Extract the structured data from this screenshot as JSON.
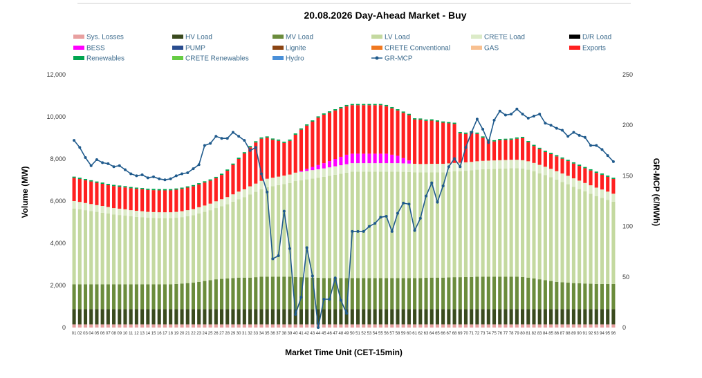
{
  "chart_data": {
    "type": "bar",
    "title": "20.08.2026  Day-Ahead Market - Buy",
    "xlabel": "Market Time Unit (CET-15min)",
    "ylabel": "Volume (MW)",
    "y2label": "GR-MCP (€/MWh)",
    "ylim": [
      0,
      12000
    ],
    "y2lim": [
      0,
      250
    ],
    "yticks": [
      "0",
      "2,000",
      "4,000",
      "6,000",
      "8,000",
      "10,000",
      "12,000"
    ],
    "y2ticks": [
      "0",
      "50",
      "100",
      "150",
      "200",
      "250"
    ],
    "categories": [
      "01",
      "02",
      "03",
      "04",
      "05",
      "06",
      "07",
      "08",
      "09",
      "10",
      "11",
      "12",
      "13",
      "14",
      "15",
      "16",
      "17",
      "18",
      "19",
      "20",
      "21",
      "22",
      "23",
      "24",
      "25",
      "26",
      "27",
      "28",
      "29",
      "30",
      "31",
      "32",
      "33",
      "34",
      "35",
      "36",
      "37",
      "38",
      "39",
      "40",
      "41",
      "42",
      "43",
      "44",
      "45",
      "46",
      "47",
      "48",
      "49",
      "50",
      "51",
      "52",
      "53",
      "54",
      "55",
      "56",
      "57",
      "58",
      "59",
      "60",
      "61",
      "62",
      "63",
      "64",
      "65",
      "66",
      "67",
      "68",
      "69",
      "70",
      "71",
      "72",
      "73",
      "74",
      "75",
      "76",
      "77",
      "78",
      "79",
      "80",
      "81",
      "82",
      "83",
      "84",
      "85",
      "86",
      "87",
      "88",
      "89",
      "90",
      "91",
      "92",
      "93",
      "94",
      "95",
      "96"
    ],
    "legend": [
      {
        "name": "Sys. Losses",
        "color": "#e8a0a0"
      },
      {
        "name": "HV Load",
        "color": "#3a4a1e"
      },
      {
        "name": "MV Load",
        "color": "#6b8c3c"
      },
      {
        "name": "LV Load",
        "color": "#c4d9a0"
      },
      {
        "name": "CRETE Load",
        "color": "#dcebc8"
      },
      {
        "name": "D/R Load",
        "color": "#000000"
      },
      {
        "name": "BESS",
        "color": "#ff00ff"
      },
      {
        "name": "PUMP",
        "color": "#2a4d8f"
      },
      {
        "name": "Lignite",
        "color": "#8b4513"
      },
      {
        "name": "CRETE Conventional",
        "color": "#f07820"
      },
      {
        "name": "GAS",
        "color": "#f8c090"
      },
      {
        "name": "Exports",
        "color": "#ff2020"
      },
      {
        "name": "Renewables",
        "color": "#00a550"
      },
      {
        "name": "CRETE Renewables",
        "color": "#66cc44"
      },
      {
        "name": "Hydro",
        "color": "#4a90d9"
      },
      {
        "name": "GR-MCP",
        "color": "#1f5a8c"
      }
    ],
    "series": [
      {
        "name": "Sys. Losses",
        "values": [
          150,
          150,
          150,
          150,
          150,
          150,
          150,
          150,
          150,
          150,
          150,
          150,
          150,
          150,
          150,
          150,
          150,
          150,
          150,
          150,
          150,
          150,
          150,
          150,
          150,
          150,
          150,
          150,
          150,
          150,
          150,
          150,
          150,
          150,
          150,
          150,
          150,
          150,
          150,
          150,
          150,
          150,
          150,
          150,
          150,
          150,
          150,
          150,
          150,
          150,
          150,
          150,
          150,
          150,
          150,
          150,
          150,
          150,
          150,
          150,
          150,
          150,
          150,
          150,
          150,
          150,
          150,
          150,
          150,
          150,
          150,
          150,
          150,
          150,
          150,
          150,
          150,
          150,
          150,
          150,
          150,
          150,
          150,
          150,
          150,
          150,
          150,
          150,
          150,
          150,
          150,
          150,
          150,
          150,
          150,
          150
        ]
      },
      {
        "name": "HV Load",
        "values": [
          720,
          720,
          720,
          720,
          720,
          720,
          720,
          720,
          720,
          720,
          720,
          720,
          720,
          720,
          720,
          720,
          720,
          720,
          720,
          720,
          720,
          720,
          720,
          720,
          720,
          720,
          720,
          720,
          720,
          720,
          720,
          720,
          720,
          720,
          720,
          720,
          720,
          720,
          720,
          720,
          720,
          720,
          720,
          720,
          720,
          720,
          720,
          720,
          720,
          720,
          720,
          720,
          720,
          720,
          720,
          720,
          720,
          720,
          720,
          720,
          720,
          720,
          720,
          720,
          720,
          720,
          720,
          720,
          720,
          720,
          720,
          720,
          720,
          720,
          720,
          720,
          720,
          720,
          720,
          720,
          720,
          720,
          720,
          720,
          720,
          720,
          720,
          720,
          720,
          720,
          720,
          720,
          720,
          720,
          720,
          720
        ]
      },
      {
        "name": "MV Load",
        "values": [
          1180,
          1180,
          1180,
          1180,
          1180,
          1180,
          1180,
          1180,
          1180,
          1180,
          1180,
          1180,
          1180,
          1180,
          1180,
          1180,
          1180,
          1180,
          1200,
          1220,
          1240,
          1260,
          1300,
          1340,
          1380,
          1420,
          1440,
          1460,
          1480,
          1500,
          1500,
          1500,
          1520,
          1540,
          1540,
          1540,
          1540,
          1540,
          1540,
          1530,
          1520,
          1510,
          1500,
          1490,
          1480,
          1480,
          1480,
          1480,
          1480,
          1480,
          1480,
          1480,
          1480,
          1480,
          1480,
          1480,
          1480,
          1480,
          1480,
          1480,
          1480,
          1480,
          1490,
          1500,
          1500,
          1500,
          1510,
          1520,
          1520,
          1530,
          1530,
          1540,
          1540,
          1540,
          1540,
          1540,
          1540,
          1540,
          1540,
          1530,
          1500,
          1460,
          1420,
          1380,
          1340,
          1300,
          1280,
          1260,
          1240,
          1230,
          1220,
          1210,
          1200,
          1200,
          1200,
          1200
        ]
      },
      {
        "name": "LV Load",
        "values": [
          3600,
          3560,
          3520,
          3480,
          3440,
          3400,
          3360,
          3320,
          3290,
          3260,
          3230,
          3200,
          3180,
          3160,
          3150,
          3140,
          3140,
          3140,
          3140,
          3150,
          3170,
          3200,
          3240,
          3280,
          3320,
          3380,
          3450,
          3520,
          3620,
          3720,
          3820,
          3950,
          4050,
          4150,
          4250,
          4300,
          4350,
          4400,
          4450,
          4550,
          4600,
          4650,
          4700,
          4750,
          4800,
          4850,
          4900,
          4950,
          5000,
          5050,
          5050,
          5050,
          5050,
          5050,
          5050,
          5050,
          5050,
          5050,
          5040,
          5030,
          5020,
          5010,
          5000,
          5000,
          5000,
          5000,
          5010,
          5020,
          5030,
          5040,
          5060,
          5080,
          5100,
          5110,
          5120,
          5130,
          5140,
          5150,
          5150,
          5140,
          5120,
          5080,
          5030,
          4980,
          4920,
          4850,
          4760,
          4670,
          4570,
          4470,
          4370,
          4270,
          4170,
          4080,
          3990,
          3900
        ]
      },
      {
        "name": "CRETE Load",
        "values": [
          350,
          350,
          340,
          330,
          320,
          320,
          310,
          300,
          300,
          300,
          290,
          290,
          290,
          280,
          280,
          280,
          280,
          280,
          280,
          280,
          290,
          290,
          300,
          300,
          310,
          320,
          330,
          340,
          350,
          360,
          370,
          380,
          390,
          400,
          400,
          400,
          400,
          400,
          400,
          400,
          400,
          400,
          400,
          400,
          400,
          400,
          400,
          400,
          400,
          400,
          400,
          400,
          400,
          400,
          400,
          400,
          400,
          400,
          400,
          400,
          400,
          400,
          400,
          400,
          400,
          400,
          400,
          400,
          400,
          400,
          400,
          400,
          400,
          400,
          400,
          400,
          400,
          400,
          400,
          400,
          400,
          400,
          400,
          400,
          400,
          400,
          400,
          400,
          400,
          400,
          400,
          400,
          400,
          400,
          390,
          380
        ]
      },
      {
        "name": "D/R Load",
        "values": [
          0,
          0,
          0,
          0,
          0,
          0,
          0,
          0,
          0,
          0,
          0,
          0,
          0,
          0,
          0,
          0,
          0,
          0,
          0,
          0,
          0,
          0,
          0,
          0,
          0,
          0,
          0,
          0,
          0,
          0,
          0,
          0,
          0,
          0,
          0,
          0,
          0,
          0,
          0,
          0,
          0,
          0,
          0,
          0,
          0,
          0,
          0,
          0,
          0,
          0,
          0,
          0,
          0,
          0,
          0,
          0,
          0,
          0,
          0,
          0,
          0,
          0,
          0,
          0,
          0,
          0,
          0,
          0,
          0,
          0,
          0,
          0,
          0,
          0,
          0,
          0,
          0,
          0,
          0,
          0,
          0,
          0,
          0,
          0,
          0,
          0,
          0,
          0,
          0,
          0,
          0,
          0,
          0,
          0,
          0,
          0
        ]
      },
      {
        "name": "BESS",
        "values": [
          0,
          0,
          0,
          0,
          0,
          0,
          0,
          0,
          0,
          0,
          0,
          0,
          0,
          0,
          0,
          0,
          0,
          0,
          0,
          0,
          0,
          0,
          0,
          0,
          0,
          0,
          0,
          0,
          0,
          0,
          0,
          0,
          0,
          0,
          0,
          0,
          0,
          0,
          0,
          0,
          50,
          100,
          150,
          200,
          250,
          300,
          350,
          400,
          450,
          450,
          450,
          450,
          450,
          450,
          450,
          450,
          400,
          350,
          250,
          150,
          0,
          0,
          0,
          0,
          0,
          0,
          0,
          0,
          0,
          0,
          0,
          0,
          0,
          0,
          0,
          0,
          0,
          0,
          0,
          0,
          0,
          0,
          0,
          0,
          0,
          0,
          0,
          0,
          0,
          0,
          0,
          0,
          0,
          0,
          0,
          0
        ]
      },
      {
        "name": "PUMP",
        "values": [
          0,
          0,
          0,
          0,
          0,
          0,
          0,
          0,
          0,
          0,
          0,
          0,
          0,
          0,
          0,
          0,
          0,
          0,
          0,
          0,
          0,
          0,
          0,
          0,
          0,
          0,
          0,
          0,
          0,
          0,
          0,
          0,
          0,
          0,
          0,
          0,
          0,
          0,
          0,
          0,
          0,
          0,
          0,
          0,
          0,
          0,
          0,
          0,
          0,
          0,
          0,
          0,
          0,
          0,
          0,
          0,
          0,
          0,
          0,
          0,
          0,
          0,
          0,
          0,
          0,
          0,
          0,
          0,
          0,
          0,
          0,
          0,
          0,
          0,
          0,
          0,
          0,
          0,
          0,
          0,
          0,
          0,
          0,
          0,
          0,
          0,
          0,
          0,
          0,
          0,
          0,
          0,
          0,
          0,
          0,
          0
        ]
      },
      {
        "name": "Exports",
        "values": [
          1100,
          1090,
          1080,
          1070,
          1060,
          1050,
          1040,
          1040,
          1040,
          1040,
          1040,
          1040,
          1040,
          1040,
          1040,
          1040,
          1040,
          1040,
          1050,
          1060,
          1070,
          1080,
          1080,
          1090,
          1090,
          1100,
          1150,
          1250,
          1400,
          1550,
          1700,
          1850,
          1950,
          2000,
          1950,
          1800,
          1700,
          1550,
          1600,
          1800,
          1950,
          2050,
          2150,
          2250,
          2300,
          2300,
          2300,
          2300,
          2300,
          2300,
          2300,
          2300,
          2300,
          2300,
          2300,
          2250,
          2200,
          2150,
          2150,
          2150,
          2100,
          2100,
          2050,
          2050,
          2000,
          1950,
          1900,
          1850,
          1400,
          1350,
          1400,
          1300,
          1100,
          950,
          900,
          950,
          950,
          950,
          1000,
          1050,
          900,
          800,
          750,
          700,
          700,
          700,
          700,
          700,
          700,
          700,
          700,
          700,
          700,
          700,
          700,
          700
        ]
      },
      {
        "name": "Renewables",
        "values": [
          60,
          60,
          60,
          60,
          60,
          60,
          60,
          60,
          60,
          60,
          60,
          60,
          60,
          60,
          60,
          60,
          60,
          60,
          60,
          60,
          60,
          60,
          60,
          60,
          60,
          60,
          60,
          60,
          60,
          60,
          60,
          60,
          60,
          60,
          60,
          60,
          60,
          60,
          60,
          60,
          60,
          60,
          60,
          60,
          60,
          60,
          60,
          60,
          60,
          60,
          60,
          60,
          60,
          60,
          60,
          60,
          60,
          60,
          60,
          60,
          60,
          60,
          60,
          60,
          60,
          60,
          60,
          60,
          60,
          60,
          60,
          60,
          60,
          60,
          60,
          60,
          60,
          60,
          60,
          60,
          60,
          60,
          60,
          60,
          60,
          60,
          60,
          60,
          60,
          60,
          60,
          60,
          60,
          60,
          60,
          60
        ]
      },
      {
        "name": "GR-MCP",
        "values": [
          185,
          178,
          168,
          160,
          166,
          163,
          162,
          159,
          160,
          156,
          152,
          150,
          151,
          148,
          149,
          147,
          146,
          147,
          150,
          152,
          153,
          157,
          161,
          180,
          182,
          189,
          187,
          187,
          193,
          189,
          185,
          175,
          178,
          152,
          134,
          68,
          71,
          115,
          78,
          13,
          30,
          79,
          51,
          0,
          28,
          28,
          49,
          27,
          14,
          95,
          95,
          95,
          100,
          103,
          109,
          110,
          95,
          113,
          123,
          122,
          96,
          108,
          130,
          143,
          124,
          140,
          159,
          167,
          159,
          178,
          193,
          206,
          196,
          183,
          205,
          214,
          210,
          211,
          216,
          211,
          207,
          209,
          211,
          202,
          200,
          197,
          195,
          189,
          193,
          190,
          188,
          180,
          180,
          176,
          170,
          164
        ]
      }
    ],
    "legend_placement": "top",
    "grid": false
  }
}
